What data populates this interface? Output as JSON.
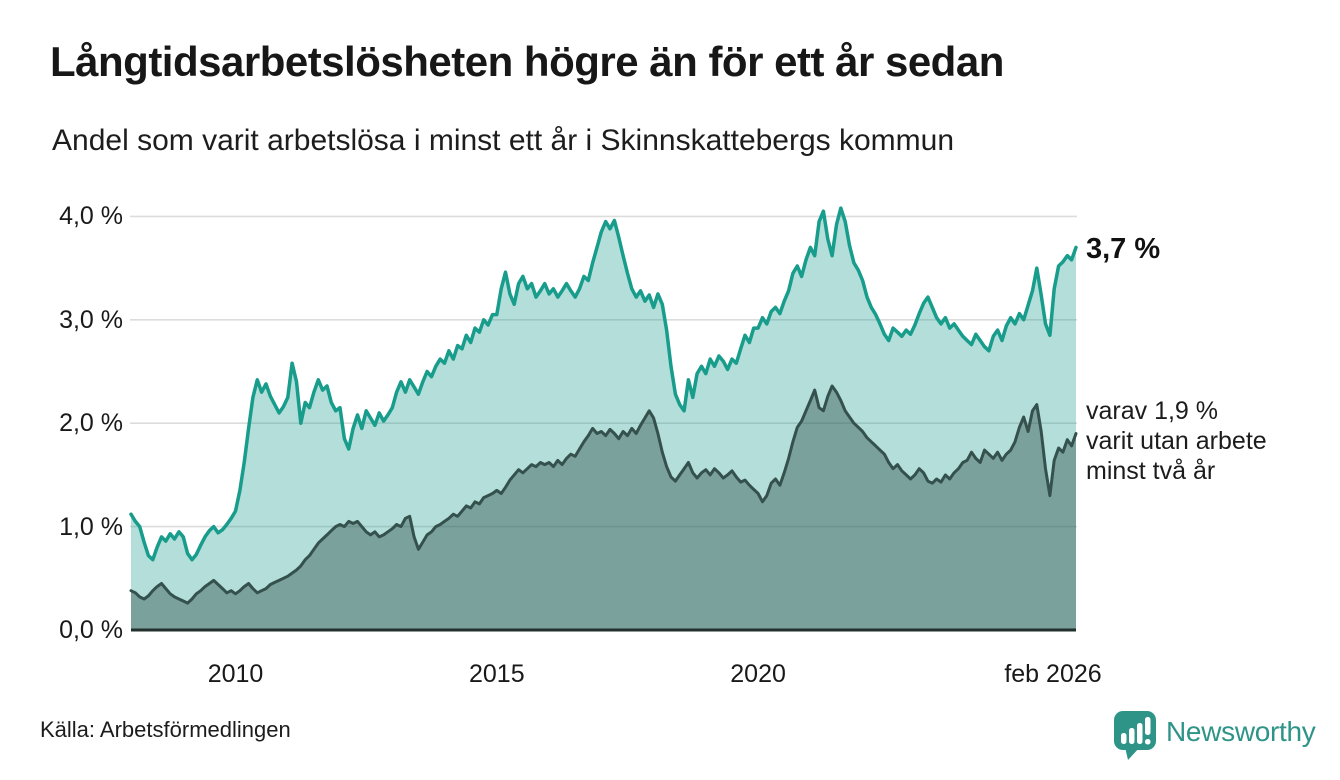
{
  "header": {
    "title": "Långtidsarbetslösheten högre än för ett år sedan",
    "subtitle": "Andel som varit arbetslösa i minst ett år i Skinnskattebergs kommun"
  },
  "chart_data": {
    "type": "area",
    "title": "Långtidsarbetslösheten högre än för ett år sedan",
    "subtitle": "Andel som varit arbetslösa i minst ett år i Skinnskattebergs kommun",
    "x_start": "2008-01",
    "x_end": "2026-02",
    "x_tick_labels": [
      "2010",
      "2015",
      "2020",
      "feb 2026"
    ],
    "x_tick_positions": [
      2010.0,
      2015.0,
      2020.0,
      2026.083
    ],
    "y_tick_labels": [
      "0,0 %",
      "1,0 %",
      "2,0 %",
      "3,0 %",
      "4,0 %"
    ],
    "y_tick_values": [
      0,
      1,
      2,
      3,
      4
    ],
    "ylim": [
      0,
      4.1
    ],
    "grid": true,
    "legend_position": "none",
    "series": [
      {
        "name": "Andel arbetslösa minst ett år",
        "line_color": "#189c8b",
        "fill_color": "rgba(26,156,140,0.33)",
        "line_width": 3.5,
        "last_value": 3.7,
        "values": [
          1.12,
          1.05,
          1.0,
          0.85,
          0.72,
          0.68,
          0.8,
          0.9,
          0.86,
          0.93,
          0.88,
          0.95,
          0.9,
          0.74,
          0.68,
          0.73,
          0.82,
          0.9,
          0.96,
          1.0,
          0.94,
          0.97,
          1.02,
          1.08,
          1.15,
          1.35,
          1.62,
          1.95,
          2.25,
          2.42,
          2.3,
          2.38,
          2.26,
          2.18,
          2.1,
          2.16,
          2.25,
          2.58,
          2.4,
          2.0,
          2.2,
          2.15,
          2.3,
          2.42,
          2.32,
          2.36,
          2.2,
          2.12,
          2.15,
          1.85,
          1.75,
          1.95,
          2.08,
          1.95,
          2.12,
          2.05,
          1.98,
          2.1,
          2.02,
          2.08,
          2.15,
          2.3,
          2.4,
          2.3,
          2.42,
          2.35,
          2.28,
          2.4,
          2.5,
          2.45,
          2.55,
          2.62,
          2.58,
          2.7,
          2.62,
          2.75,
          2.72,
          2.85,
          2.78,
          2.92,
          2.88,
          3.0,
          2.95,
          3.05,
          3.05,
          3.3,
          3.46,
          3.25,
          3.15,
          3.35,
          3.42,
          3.3,
          3.35,
          3.22,
          3.28,
          3.35,
          3.25,
          3.3,
          3.22,
          3.28,
          3.35,
          3.28,
          3.22,
          3.3,
          3.42,
          3.38,
          3.55,
          3.7,
          3.85,
          3.95,
          3.88,
          3.96,
          3.8,
          3.62,
          3.45,
          3.3,
          3.22,
          3.28,
          3.18,
          3.24,
          3.12,
          3.25,
          3.15,
          2.9,
          2.55,
          2.28,
          2.18,
          2.12,
          2.42,
          2.25,
          2.48,
          2.55,
          2.48,
          2.62,
          2.55,
          2.65,
          2.6,
          2.52,
          2.62,
          2.58,
          2.72,
          2.85,
          2.78,
          2.92,
          2.92,
          3.02,
          2.96,
          3.08,
          3.12,
          3.06,
          3.18,
          3.28,
          3.45,
          3.52,
          3.42,
          3.58,
          3.7,
          3.62,
          3.95,
          4.05,
          3.78,
          3.62,
          3.92,
          4.08,
          3.95,
          3.72,
          3.55,
          3.48,
          3.38,
          3.22,
          3.12,
          3.05,
          2.96,
          2.86,
          2.8,
          2.92,
          2.88,
          2.84,
          2.9,
          2.86,
          2.95,
          3.06,
          3.16,
          3.22,
          3.12,
          3.02,
          2.96,
          3.02,
          2.92,
          2.96,
          2.9,
          2.84,
          2.8,
          2.76,
          2.86,
          2.8,
          2.74,
          2.7,
          2.84,
          2.9,
          2.8,
          2.94,
          3.02,
          2.96,
          3.06,
          3.0,
          3.14,
          3.28,
          3.5,
          3.24,
          2.96,
          2.85,
          3.3,
          3.52,
          3.56,
          3.62,
          3.58,
          3.7
        ]
      },
      {
        "name": "varav utan arbete minst två år",
        "line_color": "#35514d",
        "fill_color": "rgba(45,77,74,0.42)",
        "line_width": 3,
        "last_value": 1.9,
        "values": [
          0.38,
          0.36,
          0.32,
          0.3,
          0.33,
          0.38,
          0.42,
          0.45,
          0.4,
          0.35,
          0.32,
          0.3,
          0.28,
          0.26,
          0.3,
          0.35,
          0.38,
          0.42,
          0.45,
          0.48,
          0.44,
          0.4,
          0.36,
          0.38,
          0.35,
          0.38,
          0.42,
          0.45,
          0.4,
          0.36,
          0.38,
          0.4,
          0.44,
          0.46,
          0.48,
          0.5,
          0.52,
          0.55,
          0.58,
          0.62,
          0.68,
          0.72,
          0.78,
          0.84,
          0.88,
          0.92,
          0.96,
          1.0,
          1.02,
          1.0,
          1.05,
          1.03,
          1.05,
          1.0,
          0.95,
          0.92,
          0.95,
          0.9,
          0.92,
          0.95,
          0.98,
          1.02,
          1.0,
          1.08,
          1.1,
          0.9,
          0.78,
          0.85,
          0.92,
          0.95,
          1.0,
          1.02,
          1.05,
          1.08,
          1.12,
          1.1,
          1.15,
          1.2,
          1.18,
          1.24,
          1.22,
          1.28,
          1.3,
          1.32,
          1.35,
          1.32,
          1.38,
          1.45,
          1.5,
          1.55,
          1.52,
          1.56,
          1.6,
          1.58,
          1.62,
          1.6,
          1.62,
          1.58,
          1.64,
          1.6,
          1.66,
          1.7,
          1.68,
          1.75,
          1.82,
          1.88,
          1.95,
          1.9,
          1.92,
          1.88,
          1.94,
          1.9,
          1.85,
          1.92,
          1.88,
          1.95,
          1.9,
          1.98,
          2.05,
          2.12,
          2.05,
          1.9,
          1.72,
          1.58,
          1.48,
          1.44,
          1.5,
          1.56,
          1.62,
          1.52,
          1.47,
          1.52,
          1.55,
          1.5,
          1.56,
          1.52,
          1.47,
          1.5,
          1.54,
          1.48,
          1.43,
          1.45,
          1.4,
          1.36,
          1.32,
          1.24,
          1.3,
          1.42,
          1.46,
          1.4,
          1.52,
          1.66,
          1.82,
          1.96,
          2.02,
          2.12,
          2.22,
          2.32,
          2.15,
          2.12,
          2.26,
          2.36,
          2.3,
          2.22,
          2.12,
          2.06,
          2.0,
          1.96,
          1.92,
          1.86,
          1.82,
          1.78,
          1.74,
          1.7,
          1.62,
          1.56,
          1.6,
          1.54,
          1.5,
          1.46,
          1.5,
          1.56,
          1.52,
          1.44,
          1.42,
          1.46,
          1.43,
          1.5,
          1.46,
          1.52,
          1.56,
          1.62,
          1.64,
          1.72,
          1.66,
          1.62,
          1.74,
          1.7,
          1.66,
          1.72,
          1.64,
          1.7,
          1.74,
          1.82,
          1.96,
          2.06,
          1.92,
          2.12,
          2.18,
          1.92,
          1.56,
          1.3,
          1.64,
          1.76,
          1.72,
          1.84,
          1.78,
          1.9
        ]
      }
    ],
    "annotations": {
      "last_value_label": "3,7 %",
      "secondary_label_lines": [
        "varav 1,9 %",
        "varit utan arbete",
        "minst två år"
      ]
    }
  },
  "colors": {
    "accent_teal": "#189c8b",
    "dark_slate": "#35514d",
    "gridline": "#dcdcdc",
    "baseline": "#22302e",
    "logo_teal": "#2d9487"
  },
  "footer": {
    "source": "Källa: Arbetsförmedlingen",
    "logo_text": "Newsworthy"
  }
}
